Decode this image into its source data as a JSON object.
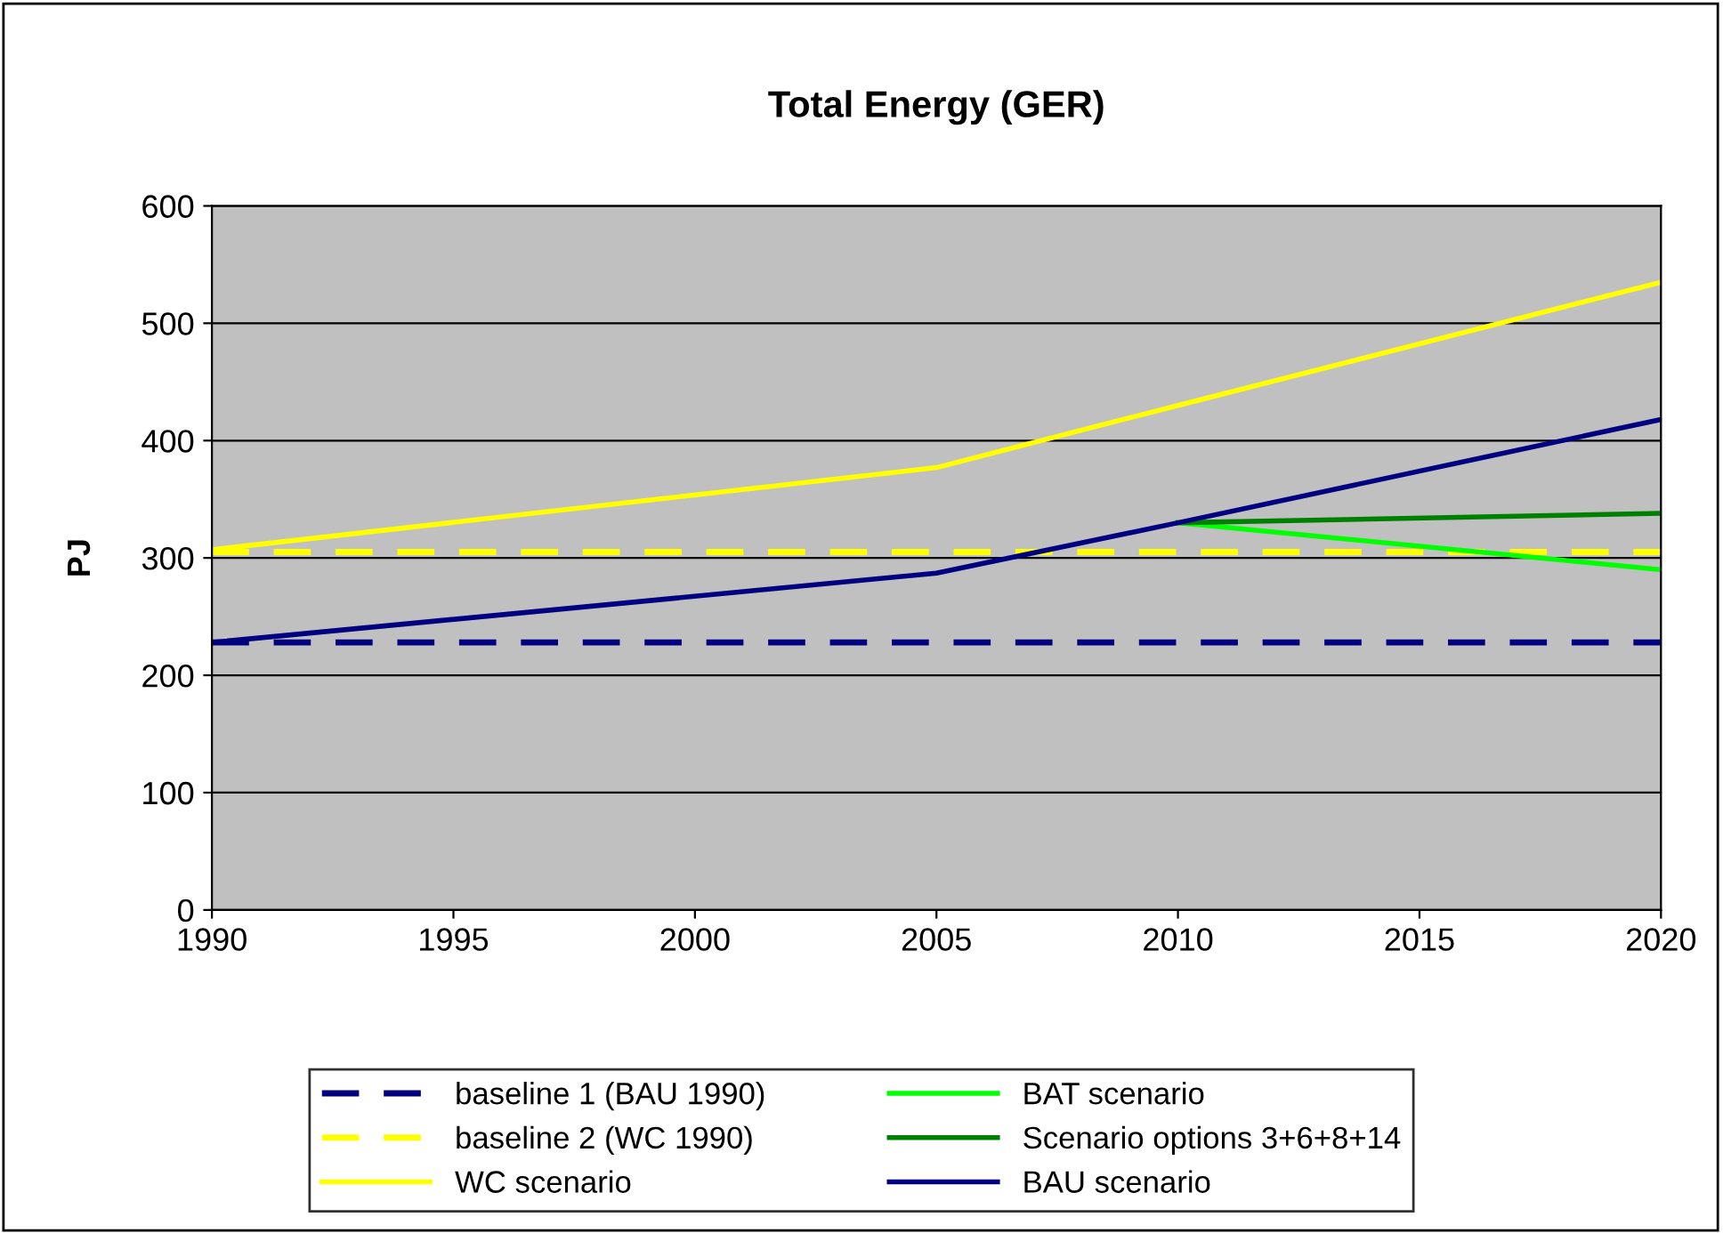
{
  "chart_data": {
    "type": "line",
    "title": "Total Energy (GER)",
    "ylabel": "PJ",
    "x": [
      1990,
      2005,
      2010,
      2020
    ],
    "series": [
      {
        "name": "baseline 1 (BAU 1990)",
        "color": "#000080",
        "line_style": "dashed",
        "x": [
          1990,
          2020
        ],
        "values": [
          228,
          228
        ]
      },
      {
        "name": "baseline 2 (WC 1990)",
        "color": "#ffff00",
        "line_style": "dashed",
        "x": [
          1990,
          2020
        ],
        "values": [
          305,
          305
        ]
      },
      {
        "name": "WC scenario",
        "color": "#ffff00",
        "values": [
          307,
          377,
          430,
          535
        ]
      },
      {
        "name": "BAT scenario",
        "color": "#00ff00",
        "x": [
          2010,
          2020
        ],
        "values": [
          330,
          290
        ]
      },
      {
        "name": "Scenario options 3+6+8+14",
        "color": "#008000",
        "x": [
          2010,
          2020
        ],
        "values": [
          330,
          338
        ]
      },
      {
        "name": "BAU scenario",
        "color": "#000080",
        "values": [
          228,
          287,
          330,
          418
        ]
      }
    ],
    "xlim": [
      1990,
      2020
    ],
    "xticks": [
      1990,
      1995,
      2000,
      2005,
      2010,
      2015,
      2020
    ],
    "ylim": [
      0,
      600
    ],
    "yticks": [
      0,
      100,
      200,
      300,
      400,
      500,
      600
    ],
    "grid": "y",
    "legend": "bottom",
    "marker": "none"
  }
}
